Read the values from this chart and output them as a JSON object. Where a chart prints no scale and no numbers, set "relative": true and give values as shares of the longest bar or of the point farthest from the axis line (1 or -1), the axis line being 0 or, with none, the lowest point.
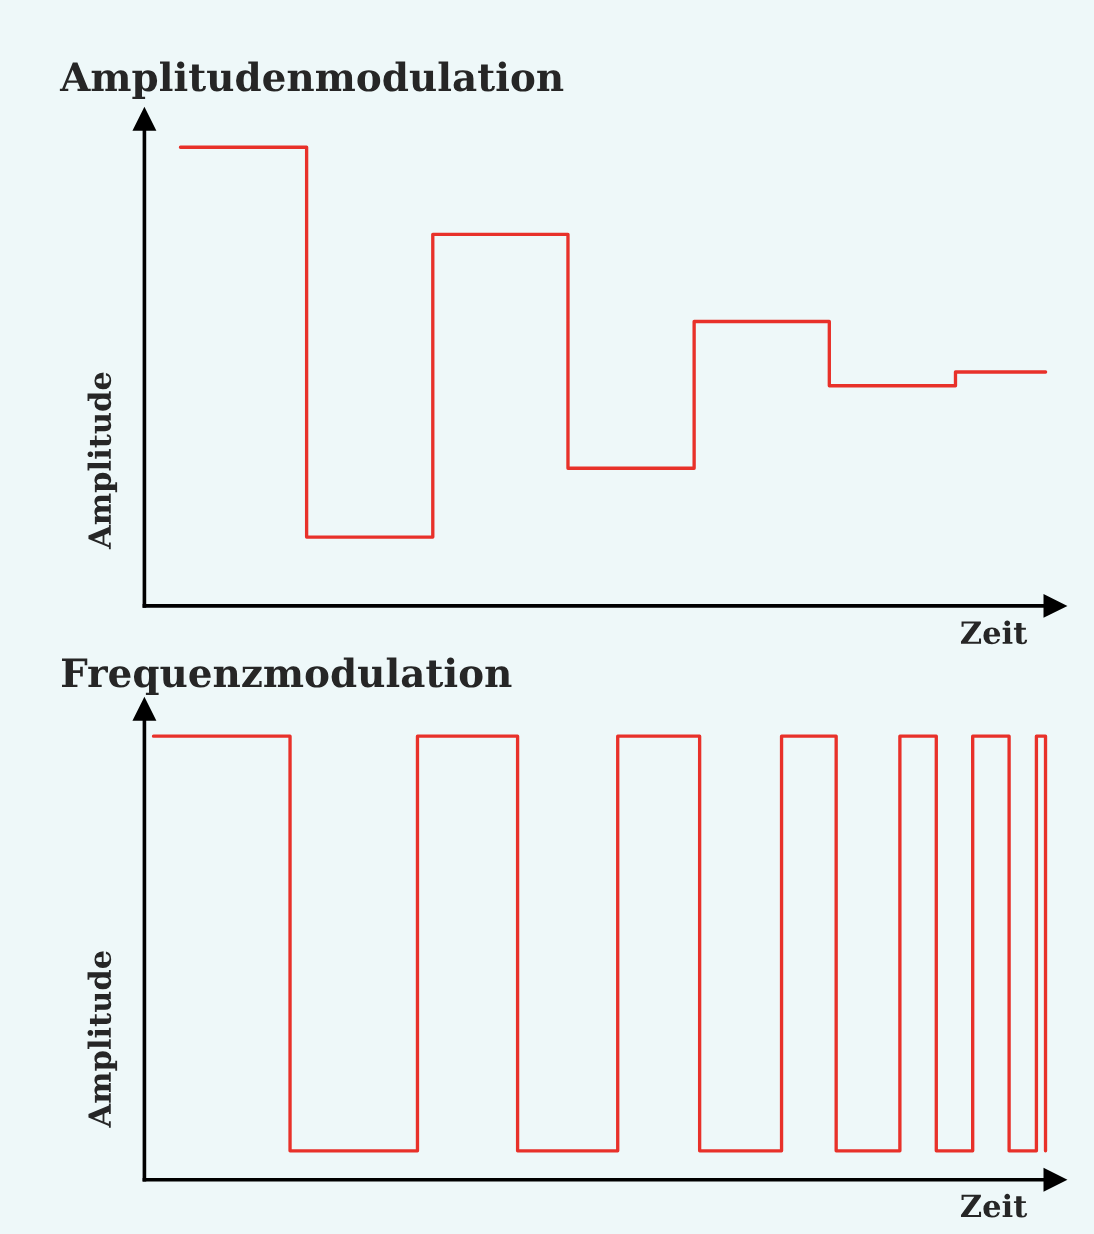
{
  "chart_data": [
    {
      "type": "step",
      "title": "Amplitudenmodulation",
      "xlabel": "Zeit",
      "ylabel": "Amplitude",
      "relative": true,
      "categories": [
        null,
        null,
        null,
        null,
        null,
        null,
        null,
        null,
        null,
        null,
        null,
        null,
        null,
        null,
        null,
        null,
        null,
        null,
        null,
        null,
        null,
        null,
        null,
        null,
        null,
        null,
        null,
        null,
        null,
        null,
        null,
        null,
        null,
        null,
        null,
        null,
        null,
        null,
        null,
        null,
        null,
        null,
        null,
        null,
        null,
        null,
        null,
        null,
        null,
        null,
        null,
        null,
        null,
        null,
        null,
        null,
        null,
        null,
        null,
        null,
        null,
        null,
        null,
        null,
        null,
        null,
        null,
        null,
        null,
        null,
        null,
        null,
        null,
        null,
        null,
        null,
        null,
        null,
        null,
        null,
        null,
        null,
        null,
        null,
        null,
        null,
        null,
        null,
        null,
        null,
        null,
        null,
        null,
        null,
        null,
        null,
        null,
        null,
        null,
        null,
        null
      ],
      "series": [
        {
          "color": "#e8312a",
          "values": [
            null,
            null,
            null,
            null,
            1.0,
            1.0,
            1.0,
            1.0,
            1.0,
            1.0,
            1.0,
            1.0,
            1.0,
            1.0,
            1.0,
            1.0,
            1.0,
            1.0,
            0.15,
            0.15,
            0.15,
            0.15,
            0.15,
            0.15,
            0.15,
            0.15,
            0.15,
            0.15,
            0.15,
            0.15,
            0.15,
            0.15,
            0.81,
            0.81,
            0.81,
            0.81,
            0.81,
            0.81,
            0.81,
            0.81,
            0.81,
            0.81,
            0.81,
            0.81,
            0.81,
            0.81,
            0.81,
            0.3,
            0.3,
            0.3,
            0.3,
            0.3,
            0.3,
            0.3,
            0.3,
            0.3,
            0.3,
            0.3,
            0.3,
            0.3,
            0.3,
            0.62,
            0.62,
            0.62,
            0.62,
            0.62,
            0.62,
            0.62,
            0.62,
            0.62,
            0.62,
            0.62,
            0.62,
            0.62,
            0.62,
            0.62,
            0.48,
            0.48,
            0.48,
            0.48,
            0.48,
            0.48,
            0.48,
            0.48,
            0.48,
            0.48,
            0.48,
            0.48,
            0.48,
            0.48,
            0.51,
            0.51,
            0.51,
            0.51,
            0.51,
            0.51,
            0.51,
            0.51,
            0.51,
            0.51,
            0.51
          ]
        }
      ]
    },
    {
      "type": "step",
      "title": "Frequenzmodulation",
      "xlabel": "Zeit",
      "ylabel": "Amplitude",
      "relative": true,
      "categories": [
        null,
        null,
        null,
        null,
        null,
        null,
        null,
        null,
        null,
        null,
        null,
        null,
        null,
        null,
        null,
        null,
        null,
        null,
        null,
        null,
        null,
        null,
        null,
        null,
        null,
        null,
        null,
        null,
        null,
        null,
        null,
        null,
        null,
        null,
        null,
        null,
        null,
        null,
        null,
        null,
        null,
        null,
        null,
        null,
        null,
        null,
        null,
        null,
        null,
        null,
        null,
        null,
        null,
        null,
        null,
        null,
        null,
        null,
        null,
        null,
        null,
        null,
        null,
        null,
        null,
        null,
        null,
        null,
        null,
        null,
        null,
        null,
        null,
        null,
        null,
        null,
        null,
        null,
        null,
        null,
        null,
        null,
        null,
        null,
        null,
        null,
        null,
        null,
        null,
        null,
        null,
        null,
        null,
        null,
        null,
        null,
        null,
        null,
        null,
        null
      ],
      "series": [
        {
          "color": "#e8312a",
          "values": [
            null,
            1,
            1,
            1,
            1,
            1,
            1,
            1,
            1,
            1,
            1,
            1,
            1,
            1,
            1,
            1,
            0.065,
            0.065,
            0.065,
            0.065,
            0.065,
            0.065,
            0.065,
            0.065,
            0.065,
            0.065,
            0.065,
            0.065,
            0.065,
            0.065,
            1,
            1,
            1,
            1,
            1,
            1,
            1,
            1,
            1,
            1,
            1,
            0.065,
            0.065,
            0.065,
            0.065,
            0.065,
            0.065,
            0.065,
            0.065,
            0.065,
            0.065,
            0.065,
            1,
            1,
            1,
            1,
            1,
            1,
            1,
            1,
            1,
            0.065,
            0.065,
            0.065,
            0.065,
            0.065,
            0.065,
            0.065,
            0.065,
            0.065,
            1,
            1,
            1,
            1,
            1,
            1,
            0.065,
            0.065,
            0.065,
            0.065,
            0.065,
            0.065,
            0.065,
            1,
            1,
            1,
            1,
            0.065,
            0.065,
            0.065,
            0.065,
            1,
            1,
            1,
            1,
            0.065,
            0.065,
            0.065,
            1,
            0.065
          ]
        }
      ]
    }
  ]
}
